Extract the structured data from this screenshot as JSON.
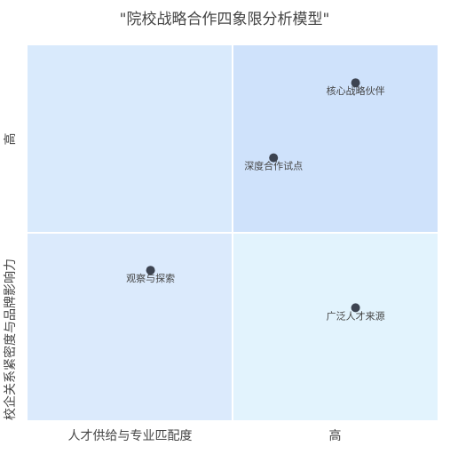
{
  "chart_data": {
    "type": "scatter",
    "title": "\"院校战略合作四象限分析模型\"",
    "x_label": "人才供给与专业匹配度",
    "x_high_label": "高",
    "y_label": "校企关系紧密度与品牌影响力",
    "y_high_label": "高",
    "x": [
      0.8,
      0.6,
      0.3,
      0.8
    ],
    "values": [
      0.9,
      0.7,
      0.4,
      0.3
    ],
    "point_labels": [
      "核心战略伙伴",
      "深度合作试点",
      "观察与探索",
      "广泛人才来源"
    ],
    "color": "#3d4451",
    "xlim": [
      0,
      1
    ],
    "ylim": [
      0,
      1
    ],
    "xsplit": 0.5,
    "ysplit": 0.5,
    "quadrant_colors": {
      "top_left": "#d9eafc",
      "top_right": "#cfe2fb",
      "bottom_left": "#dbeafc",
      "bottom_right": "#e2f3fd"
    }
  }
}
